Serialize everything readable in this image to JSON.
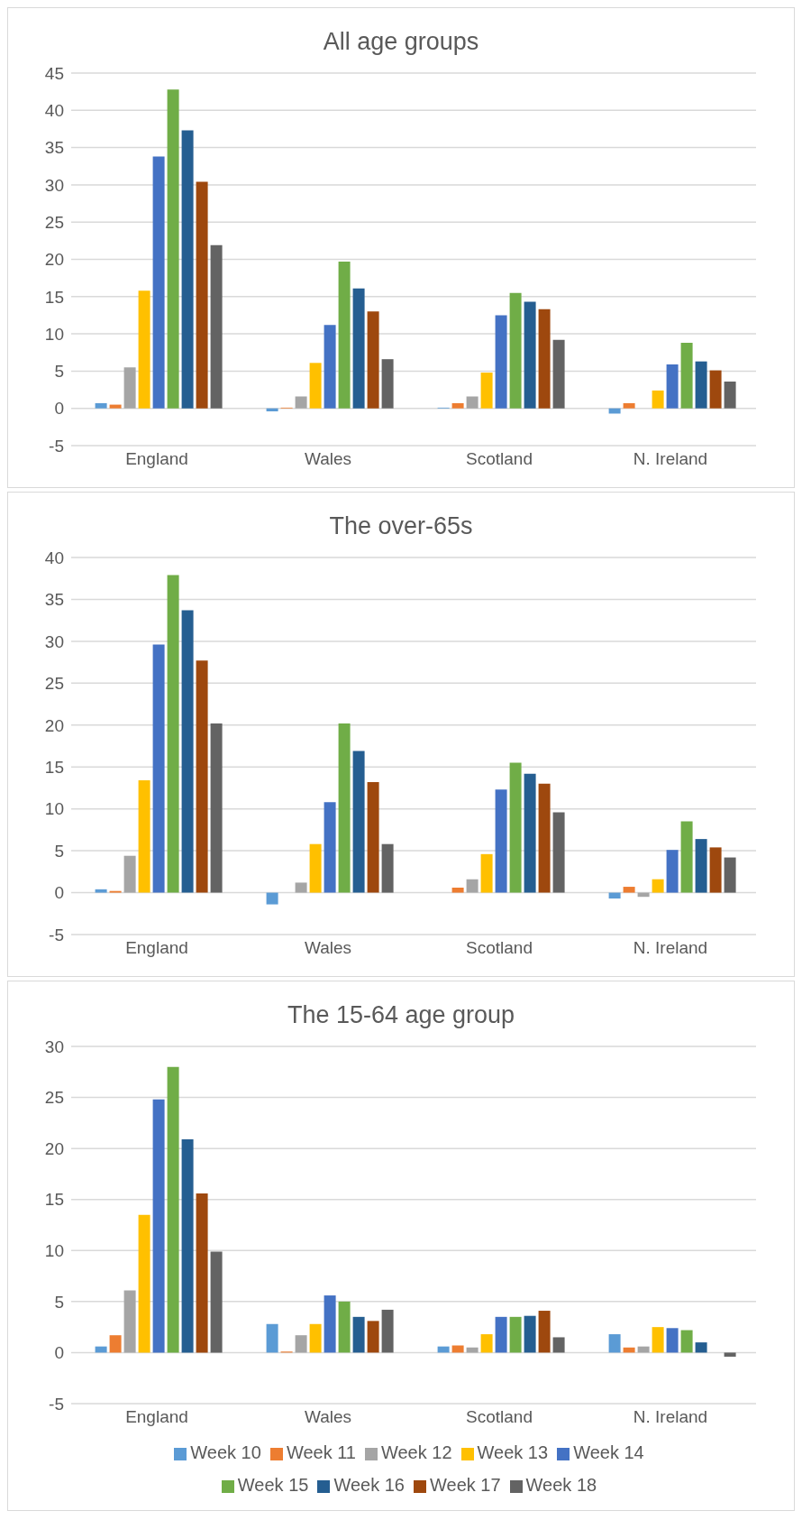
{
  "chart_data": [
    {
      "type": "bar",
      "title": "All age groups",
      "categories": [
        "England",
        "Wales",
        "Scotland",
        "N. Ireland"
      ],
      "ylim": [
        -5,
        45
      ],
      "yticks": [
        -5,
        0,
        5,
        10,
        15,
        20,
        25,
        30,
        35,
        40,
        45
      ],
      "grid": "y",
      "legend": false,
      "series": [
        {
          "color": "#5b9bd5",
          "values": [
            0.7,
            -0.4,
            0.1,
            -0.7
          ]
        },
        {
          "color": "#ed7d31",
          "values": [
            0.5,
            0.1,
            0.7,
            0.7
          ]
        },
        {
          "color": "#a5a5a5",
          "values": [
            5.5,
            1.6,
            1.6,
            null
          ]
        },
        {
          "color": "#ffc000",
          "values": [
            15.8,
            6.1,
            4.8,
            2.4
          ]
        },
        {
          "color": "#4472c4",
          "values": [
            33.8,
            11.2,
            12.5,
            5.9
          ]
        },
        {
          "color": "#70ad47",
          "values": [
            42.8,
            19.7,
            15.5,
            8.8
          ]
        },
        {
          "color": "#255e91",
          "values": [
            37.3,
            16.1,
            14.3,
            6.3
          ]
        },
        {
          "color": "#9e480e",
          "values": [
            30.4,
            13.0,
            13.3,
            5.1
          ]
        },
        {
          "color": "#636363",
          "values": [
            21.9,
            6.6,
            9.2,
            3.6
          ]
        }
      ]
    },
    {
      "type": "bar",
      "title": "The over-65s",
      "categories": [
        "England",
        "Wales",
        "Scotland",
        "N. Ireland"
      ],
      "ylim": [
        -5,
        40
      ],
      "yticks": [
        -5,
        0,
        5,
        10,
        15,
        20,
        25,
        30,
        35,
        40
      ],
      "grid": "y",
      "legend": false,
      "series": [
        {
          "color": "#5b9bd5",
          "values": [
            0.4,
            -1.4,
            0.0,
            -0.7
          ]
        },
        {
          "color": "#ed7d31",
          "values": [
            0.2,
            null,
            0.6,
            0.7
          ]
        },
        {
          "color": "#a5a5a5",
          "values": [
            4.4,
            1.2,
            1.6,
            -0.5
          ]
        },
        {
          "color": "#ffc000",
          "values": [
            13.4,
            5.8,
            4.6,
            1.6
          ]
        },
        {
          "color": "#4472c4",
          "values": [
            29.6,
            10.8,
            12.3,
            5.1
          ]
        },
        {
          "color": "#70ad47",
          "values": [
            37.9,
            20.2,
            15.5,
            8.5
          ]
        },
        {
          "color": "#255e91",
          "values": [
            33.7,
            16.9,
            14.2,
            6.4
          ]
        },
        {
          "color": "#9e480e",
          "values": [
            27.7,
            13.2,
            13.0,
            5.4
          ]
        },
        {
          "color": "#636363",
          "values": [
            20.2,
            5.8,
            9.6,
            4.2
          ]
        }
      ]
    },
    {
      "type": "bar",
      "title": "The 15-64 age group",
      "categories": [
        "England",
        "Wales",
        "Scotland",
        "N. Ireland"
      ],
      "ylim": [
        -5,
        30
      ],
      "yticks": [
        -5,
        0,
        5,
        10,
        15,
        20,
        25,
        30
      ],
      "grid": "y",
      "legend": "bottom",
      "series": [
        {
          "name": "Week 10",
          "color": "#5b9bd5",
          "values": [
            0.6,
            2.8,
            0.6,
            1.8
          ]
        },
        {
          "name": "Week 11",
          "color": "#ed7d31",
          "values": [
            1.7,
            0.1,
            0.7,
            0.5
          ]
        },
        {
          "name": "Week 12",
          "color": "#a5a5a5",
          "values": [
            6.1,
            1.7,
            0.5,
            0.6
          ]
        },
        {
          "name": "Week 13",
          "color": "#ffc000",
          "values": [
            13.5,
            2.8,
            1.8,
            2.5
          ]
        },
        {
          "name": "Week 14",
          "color": "#4472c4",
          "values": [
            24.8,
            5.6,
            3.5,
            2.4
          ]
        },
        {
          "name": "Week 15",
          "color": "#70ad47",
          "values": [
            28.0,
            5.0,
            3.5,
            2.2
          ]
        },
        {
          "name": "Week 16",
          "color": "#255e91",
          "values": [
            20.9,
            3.5,
            3.6,
            1.0
          ]
        },
        {
          "name": "Week 17",
          "color": "#9e480e",
          "values": [
            15.6,
            3.1,
            4.1,
            0.0
          ]
        },
        {
          "name": "Week 18",
          "color": "#636363",
          "values": [
            9.9,
            4.2,
            1.5,
            -0.4
          ]
        }
      ]
    }
  ]
}
